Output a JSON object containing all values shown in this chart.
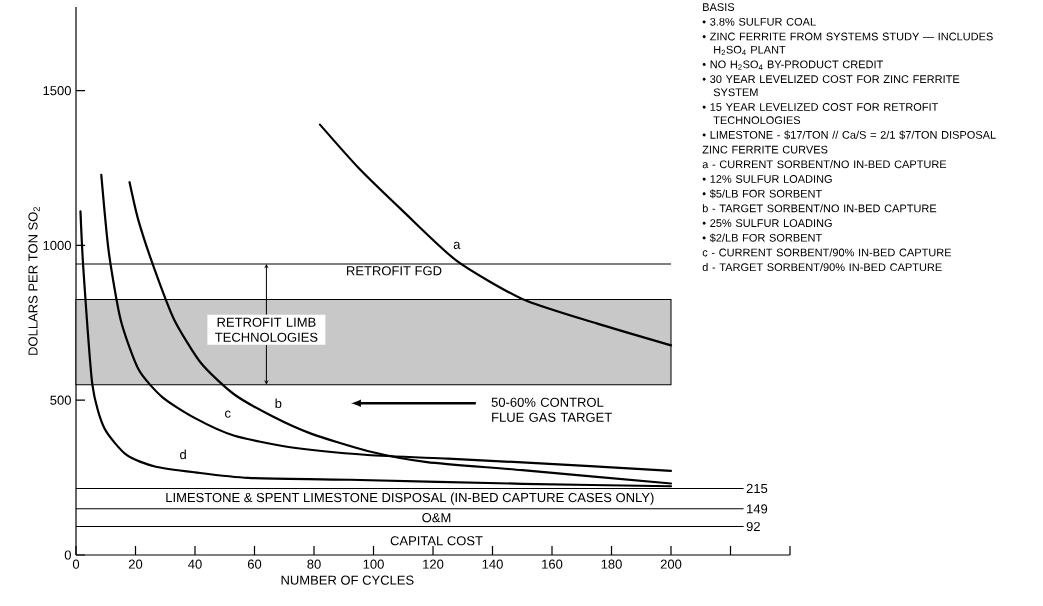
{
  "chart_data": {
    "type": "line",
    "xlabel": "NUMBER OF CYCLES",
    "ylabel": "DOLLARS PER TON SO$_{2}$",
    "xlim": [
      0,
      240
    ],
    "ylim": [
      0,
      1770
    ],
    "xticks": [
      0,
      20,
      40,
      60,
      80,
      100,
      120,
      140,
      160,
      180,
      200,
      {
        "value": 220,
        "label": null
      },
      {
        "value": 240,
        "label": null
      }
    ],
    "yticks": [
      0,
      500,
      1000,
      1500
    ],
    "grid": false,
    "marker": "none",
    "line_style": "solid",
    "series": [
      {
        "color": "#000000",
        "x": [
          82,
          95,
          110,
          128,
          150,
          175,
          200
        ],
        "values": [
          1390,
          1250,
          1110,
          950,
          827,
          748,
          677
        ]
      },
      {
        "color": "#000000",
        "x": [
          18,
          21,
          26.5,
          33,
          42,
          53,
          66,
          79,
          98,
          118,
          150,
          200
        ],
        "values": [
          1204,
          1080,
          920,
          760,
          620,
          520,
          448,
          392,
          336,
          300,
          274,
          231
        ]
      },
      {
        "color": "#000000",
        "x": [
          8.5,
          11,
          15,
          21,
          29,
          40,
          53,
          72,
          98,
          125,
          150,
          200
        ],
        "values": [
          1228,
          980,
          760,
          600,
          510,
          442,
          386,
          348,
          323,
          311,
          299,
          272
        ]
      },
      {
        "color": "#000000",
        "x": [
          1.5,
          2.5,
          5.5,
          9.5,
          17,
          26.5,
          40,
          58,
          92,
          150,
          200
        ],
        "values": [
          1110,
          920,
          550,
          410,
          323,
          286,
          267,
          249,
          243,
          230,
          222
        ]
      }
    ],
    "ref_lines": [
      {
        "axis": "y",
        "value": 940,
        "label": "RETROFIT FGD"
      },
      {
        "axis": "y",
        "value": 215,
        "label": "215"
      },
      {
        "axis": "y",
        "value": 149,
        "label": "149"
      },
      {
        "axis": "y",
        "value": 92,
        "label": "92"
      }
    ],
    "bands": [
      {
        "axis": "y",
        "from": 550,
        "to": 825,
        "label": "RETROFIT LIMB TECHNOLOGIES",
        "color": "#c8c8c8"
      }
    ],
    "annotations": [
      "BASIS",
      "• 3.8% SULFUR COAL",
      "• ZINC FERRITE FROM SYSTEMS STUDY — INCLUDES H$_{2}$SO$_{4}$ PLANT",
      "• NO H$_{2}$SO$_{4}$ BY-PRODUCT CREDIT",
      "• 30 YEAR LEVELIZED COST FOR ZINC FERRITE SYSTEM",
      "• 15 YEAR LEVELIZED COST FOR RETROFIT TECHNOLOGIES",
      "• LIMESTONE - $17/TON // Ca/S = 2/1 $7/TON DISPOSAL",
      "ZINC FERRITE CURVES",
      "a - CURRENT SORBENT/NO IN-BED CAPTURE",
      "• 12% SULFUR LOADING",
      "• $5/LB FOR SORBENT",
      "b - TARGET SORBENT/NO IN-BED CAPTURE",
      "• 25% SULFUR LOADING",
      "• $2/LB FOR SORBENT",
      "c - CURRENT SORBENT/90% IN-BED CAPTURE",
      "d - TARGET SORBENT/90% IN-BED CAPTURE",
      {
        "text": "a",
        "x": 128,
        "y": 1000
      },
      {
        "text": "b",
        "x": 68,
        "y": 490
      },
      {
        "text": "c",
        "x": 51,
        "y": 455
      },
      {
        "text": "d",
        "x": 36,
        "y": 325
      },
      "50-60% CONTROL FLUE GAS TARGET",
      "LIMESTONE & SPENT LIMESTONE DISPOSAL (IN-BED CAPTURE CASES ONLY)",
      "O&M",
      "CAPITAL COST"
    ]
  }
}
